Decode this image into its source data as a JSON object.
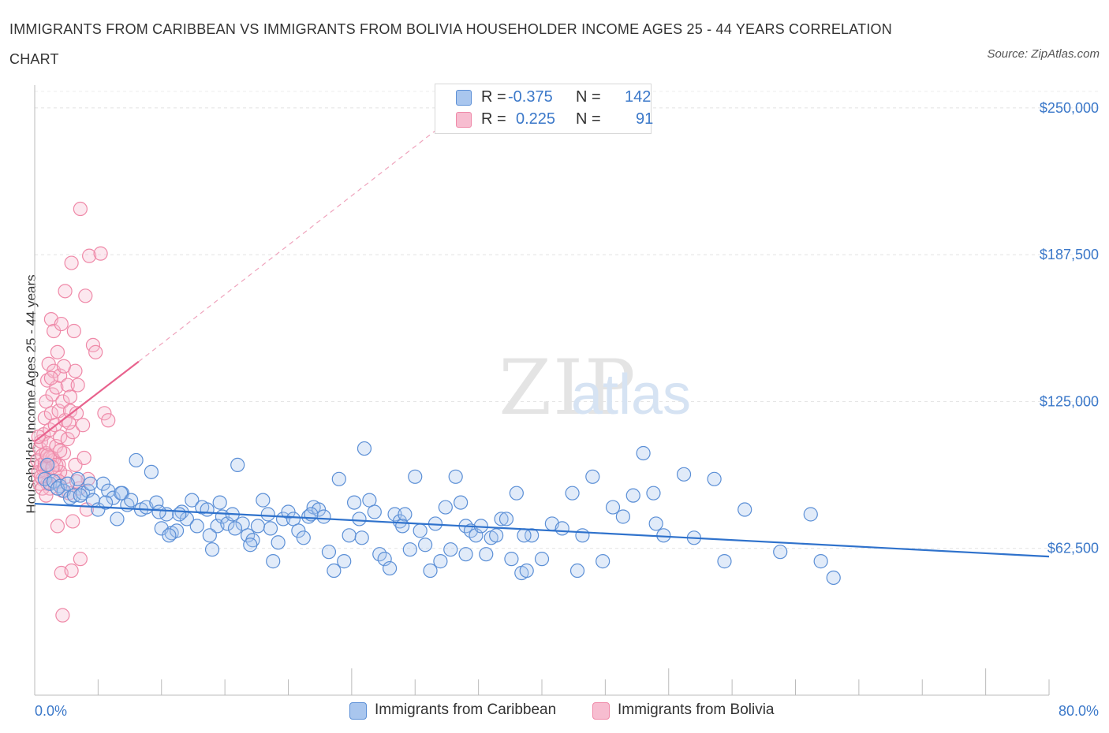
{
  "chart_data": {
    "type": "scatter",
    "title": "IMMIGRANTS FROM CARIBBEAN VS IMMIGRANTS FROM BOLIVIA HOUSEHOLDER INCOME AGES 25 - 44 YEARS CORRELATION CHART",
    "source": "Source: ZipAtlas.com",
    "ylabel": "Householder Income Ages 25 - 44 years",
    "xlim": [
      0,
      80
    ],
    "ylim": [
      0,
      257000
    ],
    "x_tick_labels": [
      "0.0%",
      "80.0%"
    ],
    "y_ticks": [
      {
        "value": 250000,
        "label": "$250,000"
      },
      {
        "value": 187500,
        "label": "$187,500"
      },
      {
        "value": 125000,
        "label": "$125,000"
      },
      {
        "value": 62500,
        "label": "$62,500"
      }
    ],
    "watermark": "ZIPatlas",
    "colors": {
      "caribbean": "#5b8fd6",
      "bolivia": "#ef89a8",
      "caribbean_fill": "#a9c6ee",
      "bolivia_fill": "#f7bdd0",
      "axis_text": "#3b78c9"
    },
    "legend": [
      {
        "name": "Caribbean",
        "r_label": "R =",
        "r": "-0.375",
        "n_label": "N =",
        "n": "142"
      },
      {
        "name": "Bolivia",
        "r_label": "R =",
        "r": "0.225",
        "n_label": "N =",
        "n": "91"
      }
    ],
    "series": [
      {
        "name": "Immigrants from Caribbean",
        "trend": {
          "x0": 0,
          "y0": 81500,
          "x1": 80,
          "y1": 59000
        },
        "points": [
          [
            0.8,
            92000
          ],
          [
            1.2,
            90000
          ],
          [
            1.5,
            91000
          ],
          [
            2.0,
            89000
          ],
          [
            2.3,
            87000
          ],
          [
            2.8,
            84000
          ],
          [
            3.1,
            85000
          ],
          [
            3.4,
            92000
          ],
          [
            3.8,
            86000
          ],
          [
            4.2,
            87000
          ],
          [
            4.6,
            83000
          ],
          [
            5.0,
            79000
          ],
          [
            5.4,
            90000
          ],
          [
            5.8,
            87000
          ],
          [
            6.2,
            84000
          ],
          [
            6.5,
            75000
          ],
          [
            6.9,
            86000
          ],
          [
            7.3,
            81000
          ],
          [
            7.6,
            83000
          ],
          [
            8.0,
            100000
          ],
          [
            8.4,
            79000
          ],
          [
            8.8,
            80000
          ],
          [
            9.2,
            95000
          ],
          [
            9.6,
            82000
          ],
          [
            10.0,
            71000
          ],
          [
            10.4,
            77000
          ],
          [
            10.8,
            69000
          ],
          [
            11.2,
            70000
          ],
          [
            11.6,
            78000
          ],
          [
            12.0,
            75000
          ],
          [
            12.4,
            83000
          ],
          [
            12.8,
            72000
          ],
          [
            13.2,
            80000
          ],
          [
            13.6,
            79000
          ],
          [
            14.0,
            62000
          ],
          [
            14.4,
            72000
          ],
          [
            14.8,
            76000
          ],
          [
            15.2,
            73000
          ],
          [
            15.6,
            77000
          ],
          [
            16.0,
            98000
          ],
          [
            16.4,
            73000
          ],
          [
            16.8,
            68000
          ],
          [
            17.2,
            66000
          ],
          [
            17.6,
            72000
          ],
          [
            18.0,
            83000
          ],
          [
            18.4,
            77000
          ],
          [
            18.8,
            57000
          ],
          [
            19.2,
            65000
          ],
          [
            19.6,
            75000
          ],
          [
            20.0,
            78000
          ],
          [
            20.4,
            75000
          ],
          [
            20.8,
            70000
          ],
          [
            21.2,
            67000
          ],
          [
            21.6,
            76000
          ],
          [
            22.0,
            80000
          ],
          [
            22.4,
            79000
          ],
          [
            22.8,
            76000
          ],
          [
            23.2,
            61000
          ],
          [
            23.6,
            53000
          ],
          [
            24.0,
            92000
          ],
          [
            24.4,
            57000
          ],
          [
            24.8,
            68000
          ],
          [
            25.2,
            82000
          ],
          [
            25.6,
            75000
          ],
          [
            26.0,
            105000
          ],
          [
            26.4,
            83000
          ],
          [
            26.8,
            78000
          ],
          [
            27.2,
            60000
          ],
          [
            27.6,
            58000
          ],
          [
            28.0,
            54000
          ],
          [
            28.4,
            77000
          ],
          [
            28.8,
            74000
          ],
          [
            29.2,
            77000
          ],
          [
            29.6,
            62000
          ],
          [
            30.0,
            93000
          ],
          [
            30.4,
            70000
          ],
          [
            30.8,
            64000
          ],
          [
            31.2,
            53000
          ],
          [
            31.6,
            73000
          ],
          [
            32.0,
            57000
          ],
          [
            32.4,
            80000
          ],
          [
            32.8,
            62000
          ],
          [
            33.2,
            93000
          ],
          [
            33.6,
            82000
          ],
          [
            34.0,
            72000
          ],
          [
            34.4,
            70000
          ],
          [
            34.8,
            68000
          ],
          [
            35.2,
            72000
          ],
          [
            35.6,
            60000
          ],
          [
            36.0,
            67000
          ],
          [
            36.4,
            68000
          ],
          [
            36.8,
            75000
          ],
          [
            37.2,
            75000
          ],
          [
            37.6,
            58000
          ],
          [
            38.0,
            86000
          ],
          [
            38.4,
            52000
          ],
          [
            38.8,
            53000
          ],
          [
            39.2,
            68000
          ],
          [
            40.0,
            58000
          ],
          [
            40.8,
            73000
          ],
          [
            41.6,
            71000
          ],
          [
            42.4,
            86000
          ],
          [
            43.2,
            68000
          ],
          [
            44.0,
            93000
          ],
          [
            44.8,
            57000
          ],
          [
            45.6,
            80000
          ],
          [
            46.4,
            76000
          ],
          [
            47.2,
            85000
          ],
          [
            48.0,
            103000
          ],
          [
            48.8,
            86000
          ],
          [
            49.6,
            68000
          ],
          [
            51.2,
            94000
          ],
          [
            52.0,
            67000
          ],
          [
            53.6,
            92000
          ],
          [
            54.4,
            57000
          ],
          [
            56.0,
            79000
          ],
          [
            58.8,
            61000
          ],
          [
            61.2,
            77000
          ],
          [
            62.0,
            57000
          ],
          [
            63.0,
            50000
          ],
          [
            10.6,
            68000
          ],
          [
            13.8,
            68000
          ],
          [
            15.8,
            71000
          ],
          [
            21.8,
            77000
          ],
          [
            25.8,
            67000
          ],
          [
            29.0,
            72000
          ],
          [
            34.0,
            60000
          ],
          [
            38.6,
            68000
          ],
          [
            42.8,
            53000
          ],
          [
            49.0,
            73000
          ],
          [
            1.0,
            98000
          ],
          [
            1.8,
            88000
          ],
          [
            2.6,
            90000
          ],
          [
            3.6,
            85000
          ],
          [
            4.4,
            90000
          ],
          [
            5.6,
            82000
          ],
          [
            6.8,
            86000
          ],
          [
            9.8,
            78000
          ],
          [
            11.4,
            77000
          ],
          [
            14.6,
            82000
          ],
          [
            17.0,
            64000
          ],
          [
            18.6,
            71000
          ]
        ]
      },
      {
        "name": "Immigrants from Bolivia",
        "trend": {
          "x0": 0,
          "y0": 108000,
          "x1": 8.2,
          "y1": 142000
        },
        "trend_ext": {
          "x0": 8.2,
          "y0": 142000,
          "x1": 32.0,
          "y1": 242000
        },
        "points": [
          [
            0.2,
            100000
          ],
          [
            0.3,
            95000
          ],
          [
            0.4,
            105000
          ],
          [
            0.5,
            98000
          ],
          [
            0.5,
            108000
          ],
          [
            0.6,
            92000
          ],
          [
            0.6,
            102000
          ],
          [
            0.7,
            96000
          ],
          [
            0.7,
            111000
          ],
          [
            0.8,
            99000
          ],
          [
            0.8,
            118000
          ],
          [
            0.9,
            103000
          ],
          [
            0.9,
            125000
          ],
          [
            1.0,
            97000
          ],
          [
            1.0,
            134000
          ],
          [
            1.1,
            107000
          ],
          [
            1.1,
            141000
          ],
          [
            1.2,
            113000
          ],
          [
            1.2,
            88000
          ],
          [
            1.3,
            120000
          ],
          [
            1.3,
            160000
          ],
          [
            1.4,
            128000
          ],
          [
            1.4,
            101000
          ],
          [
            1.5,
            138000
          ],
          [
            1.5,
            155000
          ],
          [
            1.6,
            115000
          ],
          [
            1.6,
            94000
          ],
          [
            1.7,
            106000
          ],
          [
            1.7,
            131000
          ],
          [
            1.8,
            146000
          ],
          [
            1.8,
            72000
          ],
          [
            1.9,
            121000
          ],
          [
            1.9,
            98000
          ],
          [
            2.0,
            110000
          ],
          [
            2.0,
            136000
          ],
          [
            2.1,
            158000
          ],
          [
            2.1,
            52000
          ],
          [
            2.2,
            125000
          ],
          [
            2.2,
            87000
          ],
          [
            2.3,
            103000
          ],
          [
            2.3,
            140000
          ],
          [
            2.4,
            172000
          ],
          [
            2.4,
            117000
          ],
          [
            2.5,
            93000
          ],
          [
            2.6,
            109000
          ],
          [
            2.6,
            132000
          ],
          [
            2.7,
            86000
          ],
          [
            2.8,
            127000
          ],
          [
            2.8,
            121000
          ],
          [
            2.9,
            184000
          ],
          [
            2.9,
            53000
          ],
          [
            3.0,
            112000
          ],
          [
            3.0,
            74000
          ],
          [
            3.1,
            155000
          ],
          [
            3.2,
            98000
          ],
          [
            3.2,
            138000
          ],
          [
            3.3,
            120000
          ],
          [
            3.4,
            132000
          ],
          [
            3.5,
            88000
          ],
          [
            3.6,
            207000
          ],
          [
            3.6,
            58000
          ],
          [
            3.8,
            115000
          ],
          [
            3.9,
            101000
          ],
          [
            4.0,
            170000
          ],
          [
            4.1,
            79000
          ],
          [
            4.2,
            92000
          ],
          [
            4.3,
            187000
          ],
          [
            4.6,
            149000
          ],
          [
            4.8,
            146000
          ],
          [
            5.2,
            188000
          ],
          [
            5.5,
            120000
          ],
          [
            5.8,
            117000
          ],
          [
            1.0,
            90000
          ],
          [
            1.5,
            100000
          ],
          [
            2.0,
            95000
          ],
          [
            0.4,
            90000
          ],
          [
            0.6,
            88000
          ],
          [
            0.9,
            85000
          ],
          [
            1.2,
            101000
          ],
          [
            1.7,
            98000
          ],
          [
            2.2,
            34000
          ],
          [
            0.3,
            110000
          ],
          [
            0.8,
            97000
          ],
          [
            1.4,
            97000
          ],
          [
            2.0,
            104000
          ],
          [
            2.7,
            116000
          ],
          [
            3.3,
            91000
          ],
          [
            0.5,
            93000
          ],
          [
            1.9,
            91000
          ],
          [
            1.0,
            102000
          ],
          [
            1.3,
            135000
          ]
        ]
      }
    ]
  },
  "bottom_legend": [
    {
      "label": "Immigrants from Caribbean"
    },
    {
      "label": "Immigrants from Bolivia"
    }
  ]
}
